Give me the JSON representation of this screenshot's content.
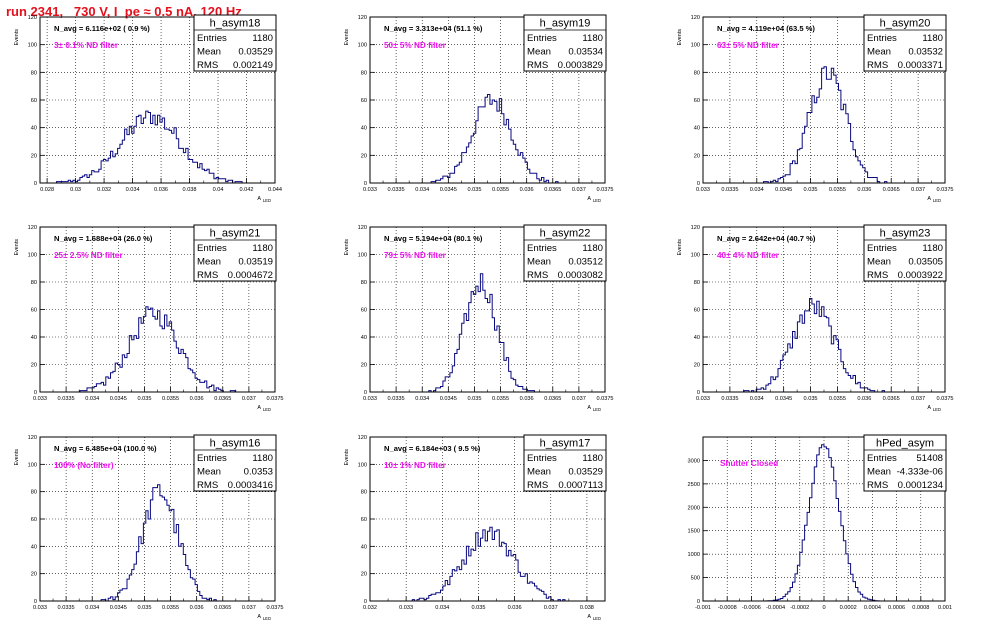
{
  "page": {
    "run_title": "run 2341,   730 V, I_pe ≈ 0.5 nA, 120 Hz",
    "colors": {
      "hist": "#0a0a80",
      "annotation": "#ee10ee",
      "title": "#e4101c",
      "frame": "#000000"
    }
  },
  "chart_data": [
    {
      "type": "bar",
      "id": "h_asym18",
      "stats": {
        "name": "h_asym18",
        "entries_label": "Entries",
        "entries": "1180",
        "mean_label": "Mean",
        "mean": "0.03529",
        "rms_label": "RMS",
        "rms": "0.002149"
      },
      "navg": "N_avg = 6.116e+02 ( 0.9 %)",
      "annotation": "3± 0.1% ND filter",
      "ylabel": "Events",
      "xlabel": "A",
      "xlabel_sub": "LED",
      "ylim": [
        0,
        120
      ],
      "yticks": [
        "0",
        "20",
        "40",
        "60",
        "80",
        "100",
        "120"
      ],
      "yticks_val": [
        0,
        20,
        40,
        60,
        80,
        100,
        120
      ],
      "xlim": [
        0.0275,
        0.044
      ],
      "xticks": [
        "0.028",
        "0.03",
        "0.032",
        "0.034",
        "0.036",
        "0.038",
        "0.04",
        "0.042",
        "0.044"
      ],
      "xticks_val": [
        0.028,
        0.03,
        0.032,
        0.034,
        0.036,
        0.038,
        0.04,
        0.042,
        0.044
      ],
      "mean_v": 0.03529,
      "sigma_v": 0.0021,
      "peak_v": 48
    },
    {
      "type": "bar",
      "id": "h_asym19",
      "stats": {
        "name": "h_asym19",
        "entries_label": "Entries",
        "entries": "1180",
        "mean_label": "Mean",
        "mean": "0.03534",
        "rms_label": "RMS",
        "rms": "0.0003829"
      },
      "navg": "N_avg = 3.313e+04 (51.1 %)",
      "annotation": "50± 5% ND filter",
      "ylabel": "Events",
      "xlabel": "A",
      "xlabel_sub": "LED",
      "ylim": [
        0,
        120
      ],
      "yticks": [
        "0",
        "20",
        "40",
        "60",
        "80",
        "100",
        "120"
      ],
      "yticks_val": [
        0,
        20,
        40,
        60,
        80,
        100,
        120
      ],
      "xlim": [
        0.033,
        0.0375
      ],
      "xticks": [
        "0.033",
        "0.0335",
        "0.034",
        "0.0345",
        "0.035",
        "0.0355",
        "0.036",
        "0.0365",
        "0.037",
        "0.0375"
      ],
      "xticks_val": [
        0.033,
        0.0335,
        0.034,
        0.0345,
        0.035,
        0.0355,
        0.036,
        0.0365,
        0.037,
        0.0375
      ],
      "mean_v": 0.03534,
      "sigma_v": 0.00038,
      "peak_v": 60
    },
    {
      "type": "bar",
      "id": "h_asym20",
      "stats": {
        "name": "h_asym20",
        "entries_label": "Entries",
        "entries": "1180",
        "mean_label": "Mean",
        "mean": "0.03532",
        "rms_label": "RMS",
        "rms": "0.0003371"
      },
      "navg": "N_avg = 4.119e+04 (63.5 %)",
      "annotation": "63± 5% ND filter",
      "ylabel": "Events",
      "xlabel": "A",
      "xlabel_sub": "LED",
      "ylim": [
        0,
        120
      ],
      "yticks": [
        "0",
        "20",
        "40",
        "60",
        "80",
        "100",
        "120"
      ],
      "yticks_val": [
        0,
        20,
        40,
        60,
        80,
        100,
        120
      ],
      "xlim": [
        0.033,
        0.0375
      ],
      "xticks": [
        "0.033",
        "0.0335",
        "0.034",
        "0.0345",
        "0.035",
        "0.0355",
        "0.036",
        "0.0365",
        "0.037",
        "0.0375"
      ],
      "xticks_val": [
        0.033,
        0.0335,
        0.034,
        0.0345,
        0.035,
        0.0355,
        0.036,
        0.0365,
        0.037,
        0.0375
      ],
      "mean_v": 0.03532,
      "sigma_v": 0.00034,
      "peak_v": 79
    },
    {
      "type": "bar",
      "id": "h_asym21",
      "stats": {
        "name": "h_asym21",
        "entries_label": "Entries",
        "entries": "1180",
        "mean_label": "Mean",
        "mean": "0.03519",
        "rms_label": "RMS",
        "rms": "0.0004672"
      },
      "navg": "N_avg = 1.688e+04 (26.0 %)",
      "annotation": "25± 2.5% ND filter",
      "ylabel": "Events",
      "xlabel": "A",
      "xlabel_sub": "LED",
      "ylim": [
        0,
        120
      ],
      "yticks": [
        "0",
        "20",
        "40",
        "60",
        "80",
        "100",
        "120"
      ],
      "yticks_val": [
        0,
        20,
        40,
        60,
        80,
        100,
        120
      ],
      "xlim": [
        0.033,
        0.0375
      ],
      "xticks": [
        "0.033",
        "0.0335",
        "0.034",
        "0.0345",
        "0.035",
        "0.0355",
        "0.036",
        "0.0365",
        "0.037",
        "0.0375"
      ],
      "xticks_val": [
        0.033,
        0.0335,
        0.034,
        0.0345,
        0.035,
        0.0355,
        0.036,
        0.0365,
        0.037,
        0.0375
      ],
      "mean_v": 0.03519,
      "sigma_v": 0.00047,
      "peak_v": 57
    },
    {
      "type": "bar",
      "id": "h_asym22",
      "stats": {
        "name": "h_asym22",
        "entries_label": "Entries",
        "entries": "1180",
        "mean_label": "Mean",
        "mean": "0.03512",
        "rms_label": "RMS",
        "rms": "0.0003082"
      },
      "navg": "N_avg = 5.194e+04 (80.1 %)",
      "annotation": "79± 5% ND filter",
      "ylabel": "Events",
      "xlabel": "A",
      "xlabel_sub": "LED",
      "ylim": [
        0,
        120
      ],
      "yticks": [
        "0",
        "20",
        "40",
        "60",
        "80",
        "100",
        "120"
      ],
      "yticks_val": [
        0,
        20,
        40,
        60,
        80,
        100,
        120
      ],
      "xlim": [
        0.033,
        0.0375
      ],
      "xticks": [
        "0.033",
        "0.0335",
        "0.034",
        "0.0345",
        "0.035",
        "0.0355",
        "0.036",
        "0.0365",
        "0.037",
        "0.0375"
      ],
      "xticks_val": [
        0.033,
        0.0335,
        0.034,
        0.0345,
        0.035,
        0.0355,
        0.036,
        0.0365,
        0.037,
        0.0375
      ],
      "mean_v": 0.03512,
      "sigma_v": 0.00031,
      "peak_v": 80
    },
    {
      "type": "bar",
      "id": "h_asym23",
      "stats": {
        "name": "h_asym23",
        "entries_label": "Entries",
        "entries": "1180",
        "mean_label": "Mean",
        "mean": "0.03505",
        "rms_label": "RMS",
        "rms": "0.0003922"
      },
      "navg": "N_avg = 2.642e+04 (40.7 %)",
      "annotation": "40± 4% ND filter",
      "ylabel": "Events",
      "xlabel": "A",
      "xlabel_sub": "LED",
      "ylim": [
        0,
        120
      ],
      "yticks": [
        "0",
        "20",
        "40",
        "60",
        "80",
        "100",
        "120"
      ],
      "yticks_val": [
        0,
        20,
        40,
        60,
        80,
        100,
        120
      ],
      "xlim": [
        0.033,
        0.0375
      ],
      "xticks": [
        "0.033",
        "0.0335",
        "0.034",
        "0.0345",
        "0.035",
        "0.0355",
        "0.036",
        "0.0365",
        "0.037",
        "0.0375"
      ],
      "xticks_val": [
        0.033,
        0.0335,
        0.034,
        0.0345,
        0.035,
        0.0355,
        0.036,
        0.0365,
        0.037,
        0.0375
      ],
      "mean_v": 0.03505,
      "sigma_v": 0.00039,
      "peak_v": 62
    },
    {
      "type": "bar",
      "id": "h_asym16",
      "stats": {
        "name": "h_asym16",
        "entries_label": "Entries",
        "entries": "1180",
        "mean_label": "Mean",
        "mean": "0.0353",
        "rms_label": "RMS",
        "rms": "0.0003416"
      },
      "navg": "N_avg = 6.485e+04 (100.0 %)",
      "annotation": "100% (No filter)",
      "ylabel": "Events",
      "xlabel": "A",
      "xlabel_sub": "LED",
      "ylim": [
        0,
        120
      ],
      "yticks": [
        "0",
        "20",
        "40",
        "60",
        "80",
        "100",
        "120"
      ],
      "yticks_val": [
        0,
        20,
        40,
        60,
        80,
        100,
        120
      ],
      "xlim": [
        0.033,
        0.0375
      ],
      "xticks": [
        "0.033",
        "0.0335",
        "0.034",
        "0.0345",
        "0.035",
        "0.0355",
        "0.036",
        "0.0365",
        "0.037",
        "0.0375"
      ],
      "xticks_val": [
        0.033,
        0.0335,
        0.034,
        0.0345,
        0.035,
        0.0355,
        0.036,
        0.0365,
        0.037,
        0.0375
      ],
      "mean_v": 0.0353,
      "sigma_v": 0.00034,
      "peak_v": 80
    },
    {
      "type": "bar",
      "id": "h_asym17",
      "stats": {
        "name": "h_asym17",
        "entries_label": "Entries",
        "entries": "1180",
        "mean_label": "Mean",
        "mean": "0.03529",
        "rms_label": "RMS",
        "rms": "0.0007113"
      },
      "navg": "N_avg = 6.184e+03 ( 9.5 %)",
      "annotation": "10± 1% ND filter",
      "ylabel": "Events",
      "xlabel": "A",
      "xlabel_sub": "LED",
      "ylim": [
        0,
        120
      ],
      "yticks": [
        "0",
        "20",
        "40",
        "60",
        "80",
        "100",
        "120"
      ],
      "yticks_val": [
        0,
        20,
        40,
        60,
        80,
        100,
        120
      ],
      "xlim": [
        0.032,
        0.0385
      ],
      "xticks": [
        "0.032",
        "0.033",
        "0.034",
        "0.035",
        "0.036",
        "0.037",
        "0.038"
      ],
      "xticks_val": [
        0.032,
        0.033,
        0.034,
        0.035,
        0.036,
        0.037,
        0.038
      ],
      "mean_v": 0.03529,
      "sigma_v": 0.00071,
      "peak_v": 50
    },
    {
      "type": "bar",
      "id": "hPed_asym",
      "stats": {
        "name": "hPed_asym",
        "entries_label": "Entries",
        "entries": "51408",
        "mean_label": "Mean",
        "mean": "-4.333e-06",
        "rms_label": "RMS",
        "rms": "0.0001234"
      },
      "navg": "",
      "annotation": "Shutter Closed",
      "ylabel": "",
      "xlabel": "",
      "xlabel_sub": "",
      "ylim": [
        0,
        3500
      ],
      "yticks": [
        "0",
        "500",
        "1000",
        "1500",
        "2000",
        "2500",
        "3000"
      ],
      "yticks_val": [
        0,
        500,
        1000,
        1500,
        2000,
        2500,
        3000
      ],
      "xlim": [
        -0.001,
        0.001
      ],
      "xticks": [
        "-0.001",
        "-0.0008",
        "-0.0006",
        "-0.0004",
        "-0.0002",
        "0",
        "0.0002",
        "0.0004",
        "0.0006",
        "0.0008",
        "0.001"
      ],
      "xticks_val": [
        -0.001,
        -0.0008,
        -0.0006,
        -0.0004,
        -0.0002,
        0,
        0.0002,
        0.0004,
        0.0006,
        0.0008,
        0.001
      ],
      "mean_v": 0.0,
      "sigma_v": 0.000123,
      "peak_v": 3330
    }
  ]
}
